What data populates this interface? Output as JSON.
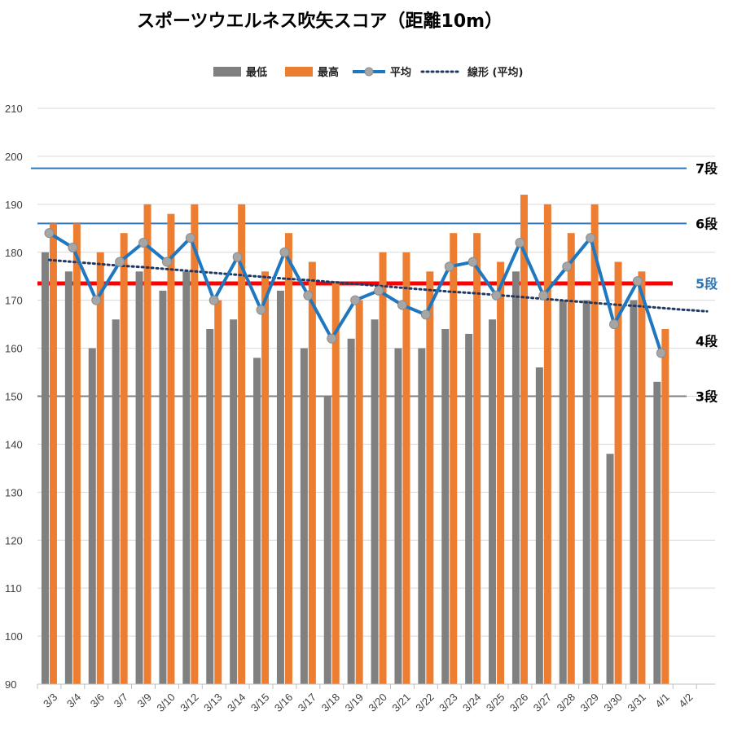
{
  "chart_data": {
    "type": "bar",
    "title": "スポーツウエルネス吹矢スコア（距離10m）",
    "categories": [
      "3/3",
      "3/4",
      "3/6",
      "3/7",
      "3/9",
      "3/10",
      "3/12",
      "3/13",
      "3/14",
      "3/15",
      "3/16",
      "3/17",
      "3/18",
      "3/19",
      "3/20",
      "3/21",
      "3/22",
      "3/23",
      "3/24",
      "3/25",
      "3/26",
      "3/27",
      "3/28",
      "3/29",
      "3/30",
      "3/31",
      "4/1",
      "4/2"
    ],
    "series": [
      {
        "name": "最低",
        "type": "bar",
        "color": "#808080",
        "values": [
          180,
          176,
          160,
          166,
          176,
          172,
          176,
          164,
          166,
          158,
          172,
          160,
          150,
          162,
          166,
          160,
          160,
          164,
          163,
          166,
          176,
          156,
          170,
          170,
          138,
          170,
          153,
          null
        ]
      },
      {
        "name": "最高",
        "type": "bar",
        "color": "#ED7D31",
        "values": [
          186,
          186,
          180,
          184,
          190,
          188,
          190,
          170,
          190,
          176,
          184,
          178,
          174,
          170,
          180,
          180,
          176,
          184,
          184,
          178,
          192,
          190,
          184,
          190,
          178,
          176,
          164,
          null
        ]
      },
      {
        "name": "平均",
        "type": "line",
        "color": "#1F77C0",
        "values": [
          184,
          181,
          170,
          178,
          182,
          178,
          183,
          170,
          179,
          168,
          180,
          171,
          162,
          170,
          172,
          169,
          167,
          177,
          178,
          171,
          182,
          171,
          177,
          183,
          165,
          174,
          159,
          null
        ]
      },
      {
        "name": "線形 (平均)",
        "type": "trendline",
        "color": "#1F3864",
        "values": [
          178.4,
          178.0,
          177.6,
          177.2,
          176.9,
          176.5,
          176.1,
          175.7,
          175.3,
          174.9,
          174.5,
          174.2,
          173.8,
          173.4,
          173.0,
          172.6,
          172.2,
          171.8,
          171.5,
          171.1,
          170.7,
          170.3,
          169.9,
          169.5,
          169.1,
          168.8,
          168.4,
          168.0
        ]
      }
    ],
    "reference_lines": [
      {
        "label": "7段",
        "value": 197.5,
        "color": "#2E75B6",
        "label_color": "#000000"
      },
      {
        "label": "6段",
        "value": 186,
        "color": "#2E75B6",
        "label_color": "#000000"
      },
      {
        "label": "5段",
        "value": 173.5,
        "color": "#FF0000",
        "label_color": "#2E75B6"
      },
      {
        "label": "4段",
        "value": null,
        "label_value": 161.5,
        "color": null,
        "label_color": "#000000"
      },
      {
        "label": "3段",
        "value": 150,
        "color": "#808080",
        "label_color": "#000000"
      }
    ],
    "yticks": [
      90,
      100,
      110,
      120,
      130,
      140,
      150,
      160,
      170,
      180,
      190,
      200,
      210
    ],
    "ylim": [
      90,
      210
    ],
    "grid": true,
    "legend": "top"
  }
}
